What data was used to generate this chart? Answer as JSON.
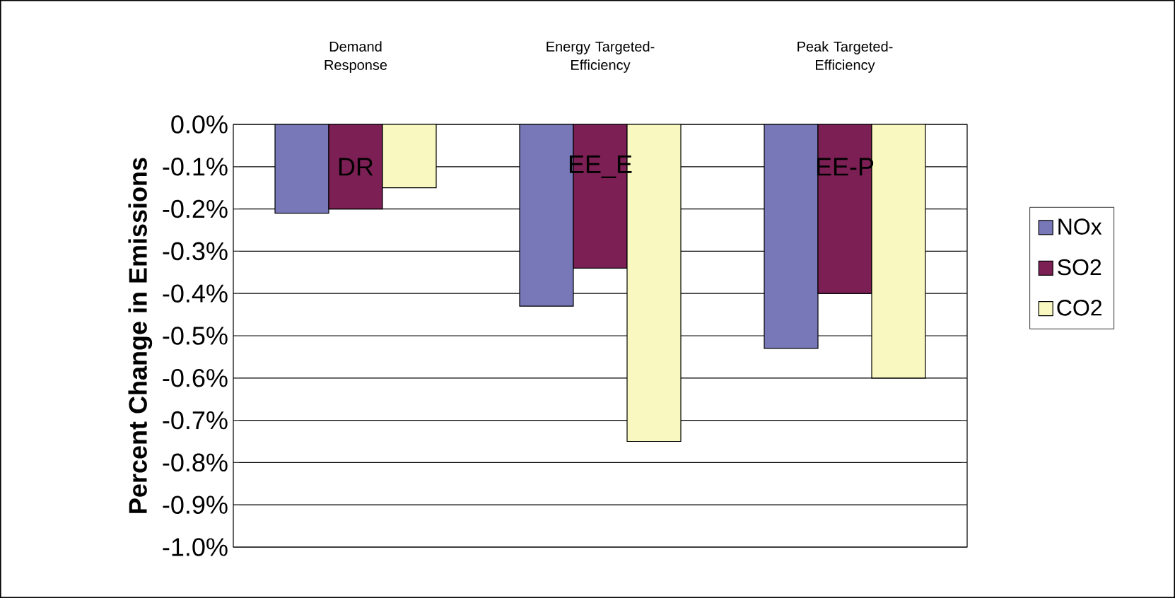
{
  "chart_data": {
    "type": "bar",
    "ylabel": "Percent Change in Emissions",
    "categories": [
      "DR",
      "EE_E",
      "EE-P"
    ],
    "annotations": [
      "Demand Response",
      "Energy Targeted-Efficiency",
      "Peak Targeted-Efficiency"
    ],
    "series": [
      {
        "name": "NOx",
        "color": "#7878b8",
        "values": [
          -0.21,
          -0.43,
          -0.53
        ]
      },
      {
        "name": "SO2",
        "color": "#7b1f55",
        "values": [
          -0.2,
          -0.34,
          -0.4
        ]
      },
      {
        "name": "CO2",
        "color": "#f8f8c0",
        "values": [
          -0.15,
          -0.75,
          -0.6
        ]
      }
    ],
    "ylim": [
      -1.0,
      0.0
    ],
    "yticks": [
      {
        "value": 0,
        "label": "0.0%"
      },
      {
        "value": -0.1,
        "label": "-0.1%"
      },
      {
        "value": -0.2,
        "label": "-0.2%"
      },
      {
        "value": -0.3,
        "label": "-0.3%"
      },
      {
        "value": -0.4,
        "label": "-0.4%"
      },
      {
        "value": -0.5,
        "label": "-0.5%"
      },
      {
        "value": -0.6,
        "label": "-0.6%"
      },
      {
        "value": -0.7,
        "label": "-0.7%"
      },
      {
        "value": -0.8,
        "label": "-0.8%"
      },
      {
        "value": -0.9,
        "label": "-0.9%"
      },
      {
        "value": -1.0,
        "label": "-1.0%"
      }
    ],
    "grid": "y",
    "legend": "right"
  }
}
